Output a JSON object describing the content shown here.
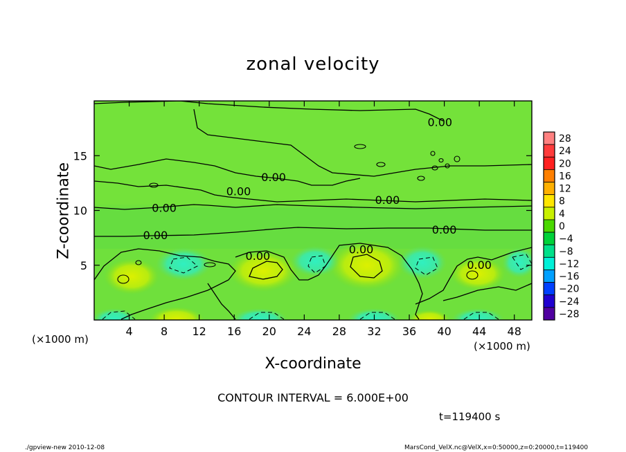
{
  "chart_data": {
    "type": "heatmap",
    "title": "zonal velocity",
    "xlabel": "X-coordinate",
    "ylabel": "Z-coordinate",
    "x_unit_label": "(×1000 m)",
    "y_unit_label": "(×1000 m)",
    "xlim": [
      0,
      50
    ],
    "ylim": [
      0,
      20
    ],
    "x_ticks": [
      4,
      8,
      12,
      16,
      20,
      24,
      28,
      32,
      36,
      40,
      44,
      48
    ],
    "y_ticks": [
      5,
      10,
      15
    ],
    "colorbar": {
      "levels": [
        28,
        24,
        20,
        16,
        12,
        8,
        4,
        0,
        -4,
        -8,
        -12,
        -16,
        -20,
        -24,
        -28
      ],
      "labels": [
        "28",
        "24",
        "20",
        "16",
        "12",
        "8",
        "4",
        "0",
        "−4",
        "−8",
        "−12",
        "−16",
        "−20",
        "−24",
        "−28"
      ],
      "colors": [
        "#ff8080",
        "#ff3b3b",
        "#ff2020",
        "#ff7f00",
        "#ffb000",
        "#ffe600",
        "#c8f000",
        "#4ad800",
        "#00d23a",
        "#00e08a",
        "#00f0d8",
        "#00a0ff",
        "#0040ff",
        "#2000d0",
        "#5000a0"
      ]
    },
    "contour_labels": [
      {
        "text": "0.00",
        "x": 39.5,
        "z": 18.0
      },
      {
        "text": "0.00",
        "x": 20.5,
        "z": 13.0
      },
      {
        "text": "0.00",
        "x": 16.5,
        "z": 11.7
      },
      {
        "text": "0.00",
        "x": 33.5,
        "z": 10.9
      },
      {
        "text": "0.00",
        "x": 8.0,
        "z": 10.2
      },
      {
        "text": "0.00",
        "x": 40.0,
        "z": 8.2
      },
      {
        "text": "0.00",
        "x": 7.0,
        "z": 7.7
      },
      {
        "text": "0.00",
        "x": 18.7,
        "z": 5.8
      },
      {
        "text": "0.00",
        "x": 30.5,
        "z": 6.4
      },
      {
        "text": "0.00",
        "x": 44.0,
        "z": 5.0
      }
    ],
    "contour_interval_text": "CONTOUR INTERVAL = 6.000E+00",
    "time_text": "t=119400 s",
    "grid": false
  },
  "footer": {
    "left": "./gpview-new  2010-12-08",
    "right": "MarsCond_VelX.nc@VelX,x=0:50000,z=0:20000,t=119400"
  }
}
